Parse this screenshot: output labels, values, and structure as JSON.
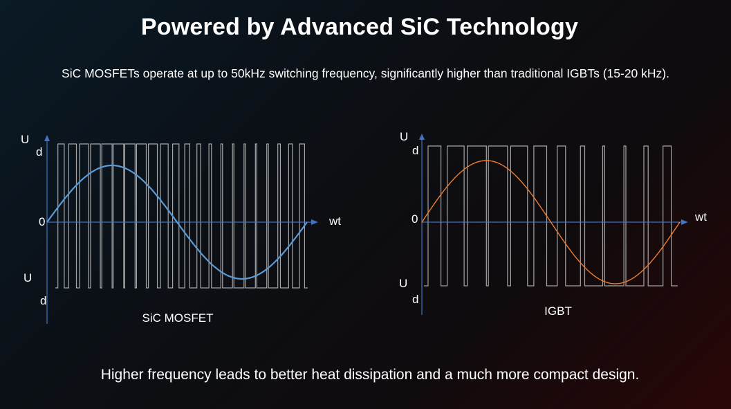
{
  "title": "Powered by Advanced SiC Technology",
  "subtitle": "SiC MOSFETs operate at up to 50kHz switching frequency, significantly higher than traditional IGBTs (15-20 kHz).",
  "footer": "Higher frequency leads to better heat dissipation and a much more compact design.",
  "colors": {
    "axis": "#4472c4",
    "sic_wave": "#5b9bd5",
    "igbt_wave": "#ed7d31",
    "pulse": "#a6a6a6"
  },
  "diagrams": {
    "sic": {
      "caption": "SiC MOSFET",
      "y_top_label_1": "U",
      "y_top_label_2": "d",
      "origin_label": "0",
      "y_bottom_label_1": "U",
      "y_bottom_label_2": "d",
      "x_axis_label": "wt",
      "pulse_count": 22
    },
    "igbt": {
      "caption": "IGBT",
      "y_top_label_1": "U",
      "y_top_label_2": "d",
      "origin_label": "0",
      "y_bottom_label_1": "U",
      "y_bottom_label_2": "d",
      "x_axis_label": "wt",
      "pulse_count": 12
    }
  }
}
